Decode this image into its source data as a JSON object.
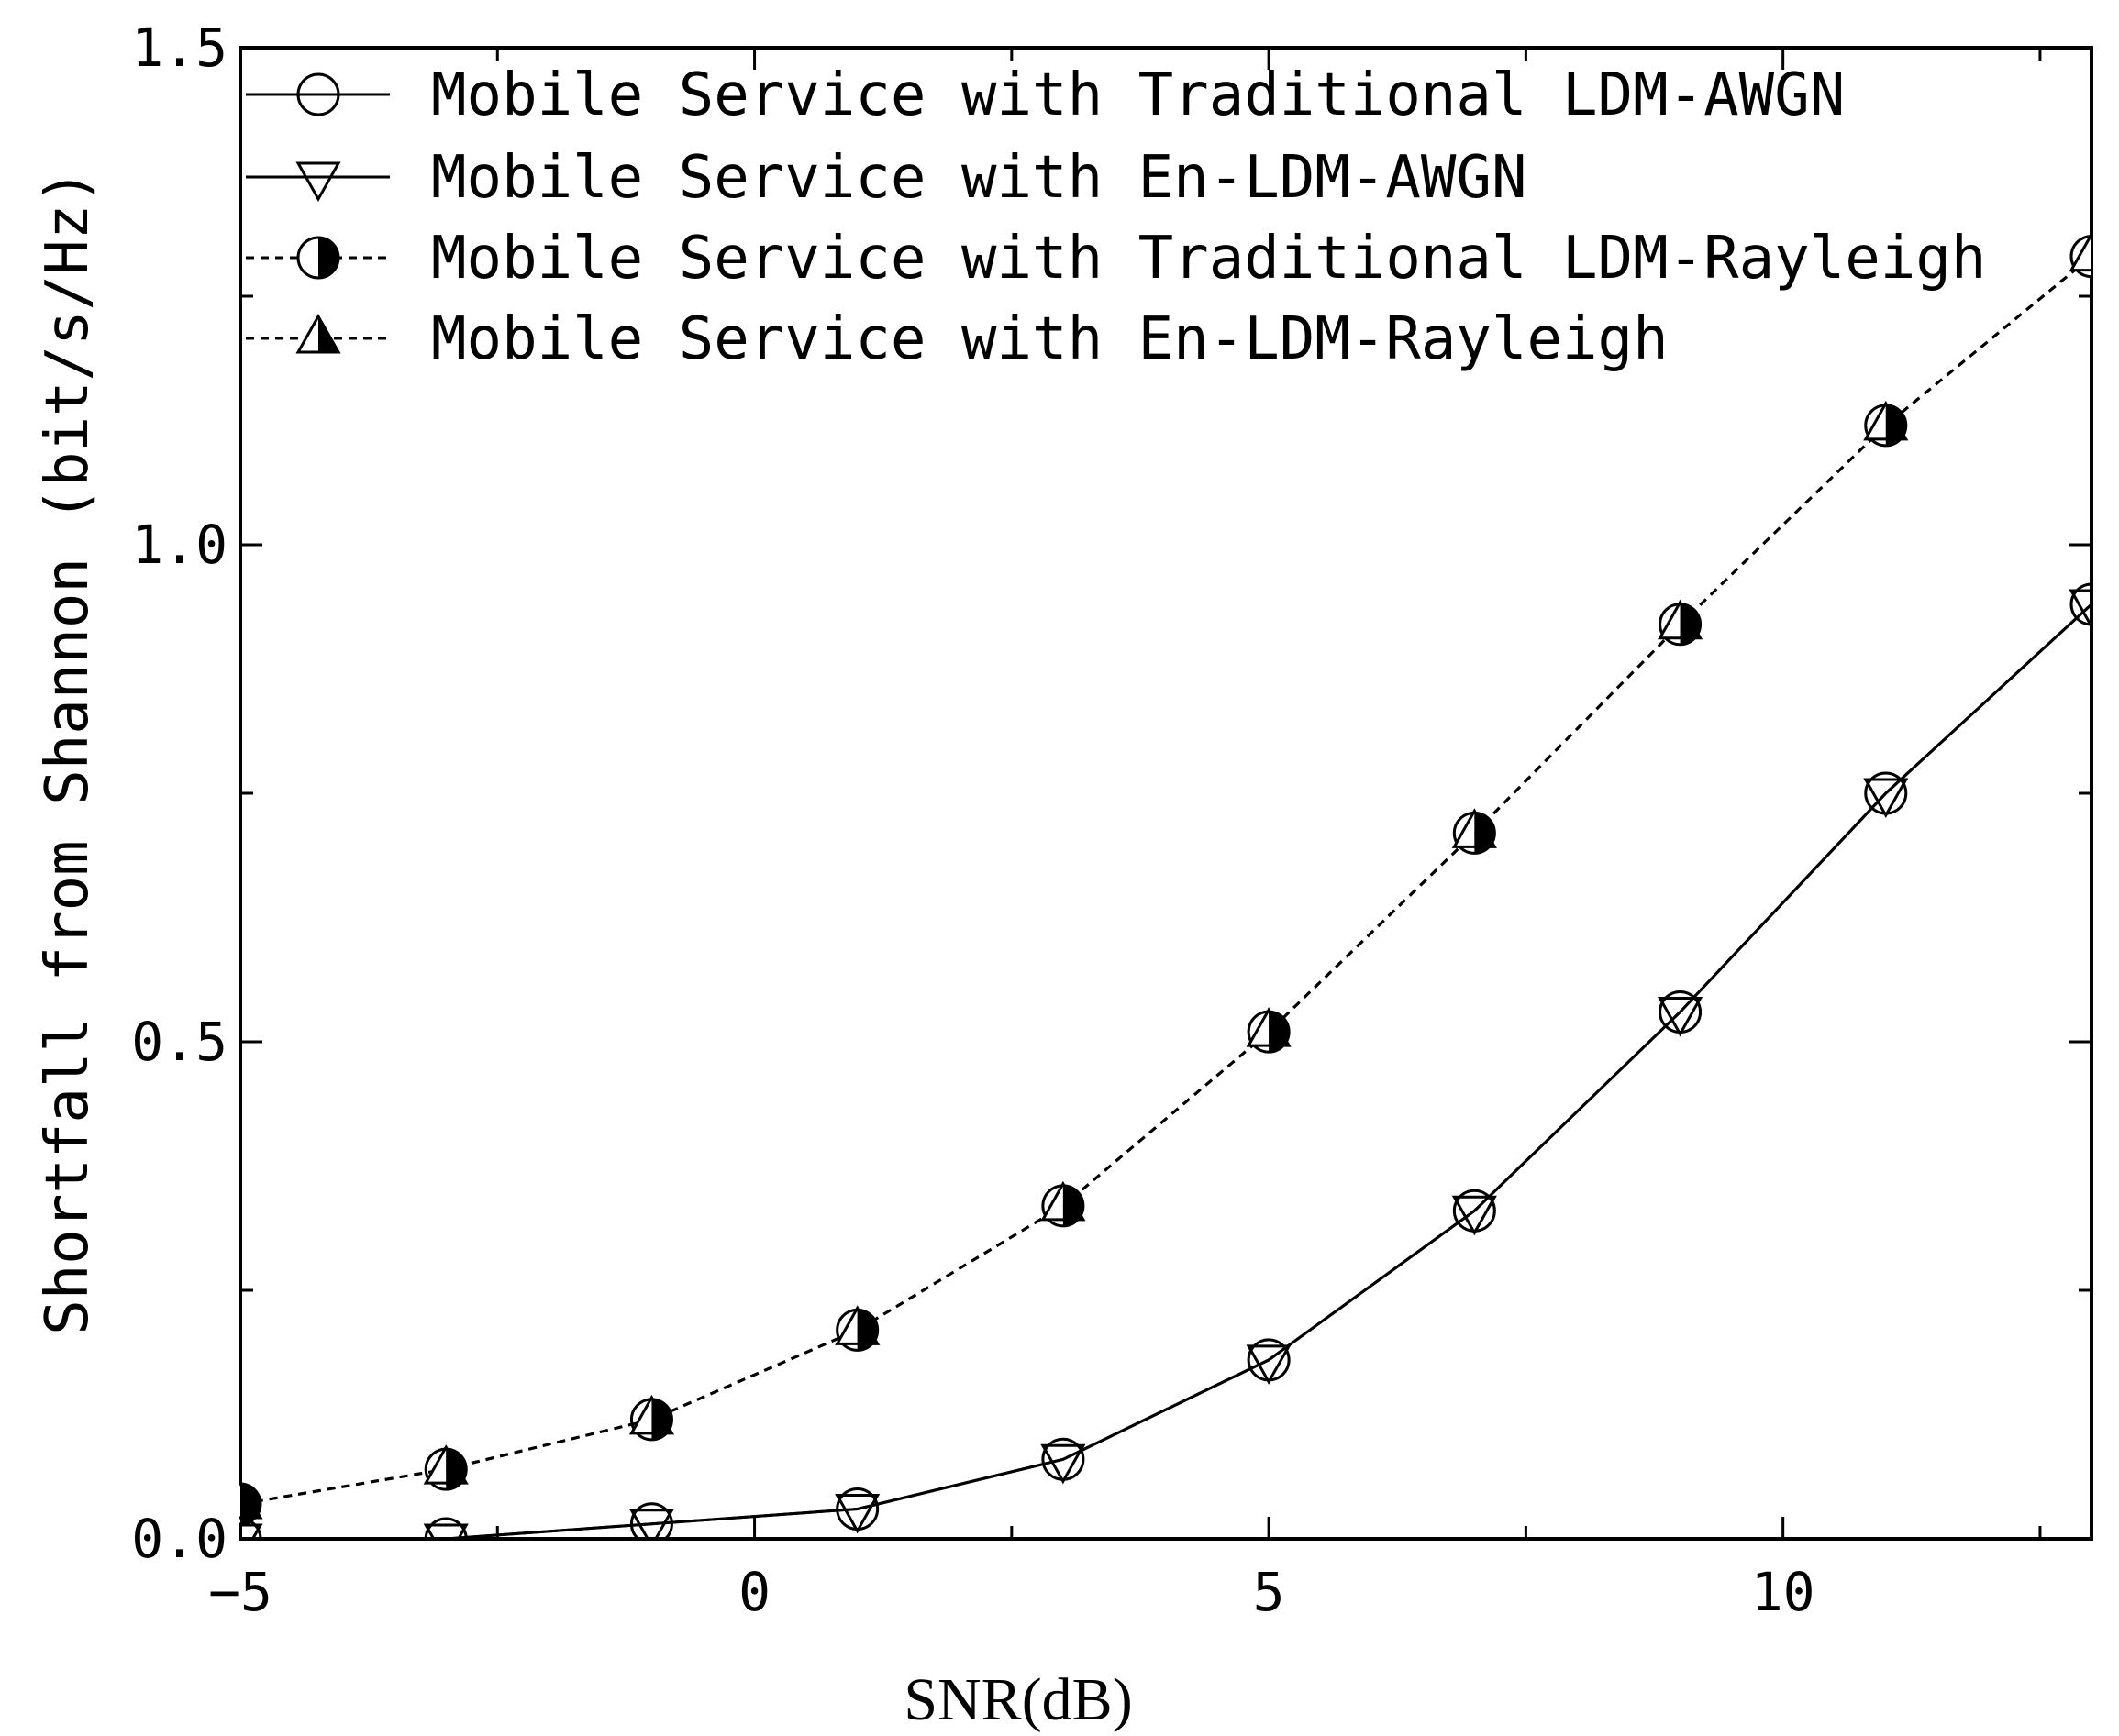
{
  "chart_data": {
    "type": "line",
    "title": "",
    "xlabel": "SNR(dB)",
    "ylabel": "Shortfall from Shannon (bit/s/Hz)",
    "xlim": [
      -5,
      13
    ],
    "ylim": [
      0,
      1.5
    ],
    "x_ticks": [
      -5,
      0,
      5,
      10
    ],
    "x_tick_labels": [
      "−5",
      "0",
      "5",
      "10"
    ],
    "y_ticks": [
      0,
      0.5,
      1.0,
      1.5
    ],
    "y_tick_labels": [
      "0.0",
      "0.5",
      "1.0",
      "1.5"
    ],
    "x_minor_step": 2.5,
    "y_minor_step": 0.25,
    "grid": false,
    "legend_position": "top-left",
    "x": [
      -5,
      -3,
      -1,
      1,
      3,
      5,
      7,
      9,
      11,
      13
    ],
    "series": [
      {
        "name": "Mobile Service with Traditional LDM-AWGN",
        "line_style": "solid",
        "marker": "open-circle",
        "values": [
          0.0,
          0.0,
          0.015,
          0.03,
          0.08,
          0.18,
          0.33,
          0.53,
          0.75,
          0.94
        ]
      },
      {
        "name": "Mobile Service with En-LDM-AWGN",
        "line_style": "solid",
        "marker": "open-down-triangle",
        "values": [
          0.0,
          0.0,
          0.015,
          0.03,
          0.08,
          0.18,
          0.33,
          0.53,
          0.75,
          0.94
        ]
      },
      {
        "name": "Mobile Service with Traditional LDM-Rayleigh",
        "line_style": "dashed",
        "marker": "half-filled-circle",
        "values": [
          0.035,
          0.07,
          0.12,
          0.21,
          0.335,
          0.51,
          0.71,
          0.92,
          1.12,
          1.29
        ]
      },
      {
        "name": "Mobile Service with En-LDM-Rayleigh",
        "line_style": "dashed",
        "marker": "half-filled-up-triangle",
        "values": [
          0.035,
          0.07,
          0.12,
          0.21,
          0.335,
          0.51,
          0.71,
          0.92,
          1.12,
          1.29
        ]
      }
    ]
  },
  "colors": {
    "line": "#000000",
    "background": "#ffffff"
  }
}
